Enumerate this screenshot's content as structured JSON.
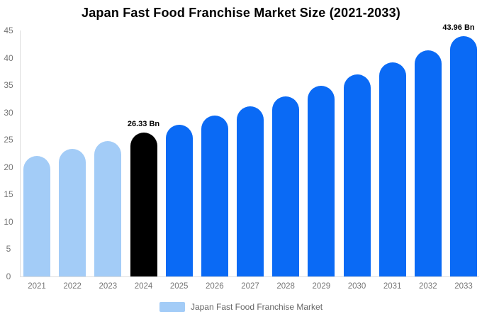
{
  "chart_data": {
    "type": "bar",
    "title": "Japan Fast Food Franchise Market Size (2021-2033)",
    "categories": [
      "2021",
      "2022",
      "2023",
      "2024",
      "2025",
      "2026",
      "2027",
      "2028",
      "2029",
      "2030",
      "2031",
      "2032",
      "2033"
    ],
    "values": [
      22.0,
      23.3,
      24.8,
      26.33,
      27.7,
      29.4,
      31.1,
      32.9,
      34.9,
      36.9,
      39.1,
      41.4,
      43.96
    ],
    "unit": "Bn",
    "xlabel": "",
    "ylabel": "",
    "ylim": [
      0,
      45
    ],
    "yticks": [
      0,
      5,
      10,
      15,
      20,
      25,
      30,
      35,
      40,
      45
    ],
    "grid": false,
    "bar_styles": [
      "historical",
      "historical",
      "historical",
      "highlight",
      "forecast",
      "forecast",
      "forecast",
      "forecast",
      "forecast",
      "forecast",
      "forecast",
      "forecast",
      "forecast"
    ],
    "colors": {
      "historical": "#a3ccf7",
      "highlight": "#000000",
      "forecast": "#0a6af5",
      "axis_line": "#dddddd",
      "tick_text": "#757575",
      "title_text": "#000000"
    },
    "data_labels": [
      {
        "index": 3,
        "text": "26.33 Bn"
      },
      {
        "index": 12,
        "text": "43.96 Bn"
      }
    ],
    "legend": {
      "position": "bottom",
      "label": "Japan Fast Food Franchise Market",
      "swatch_style": "historical"
    }
  }
}
